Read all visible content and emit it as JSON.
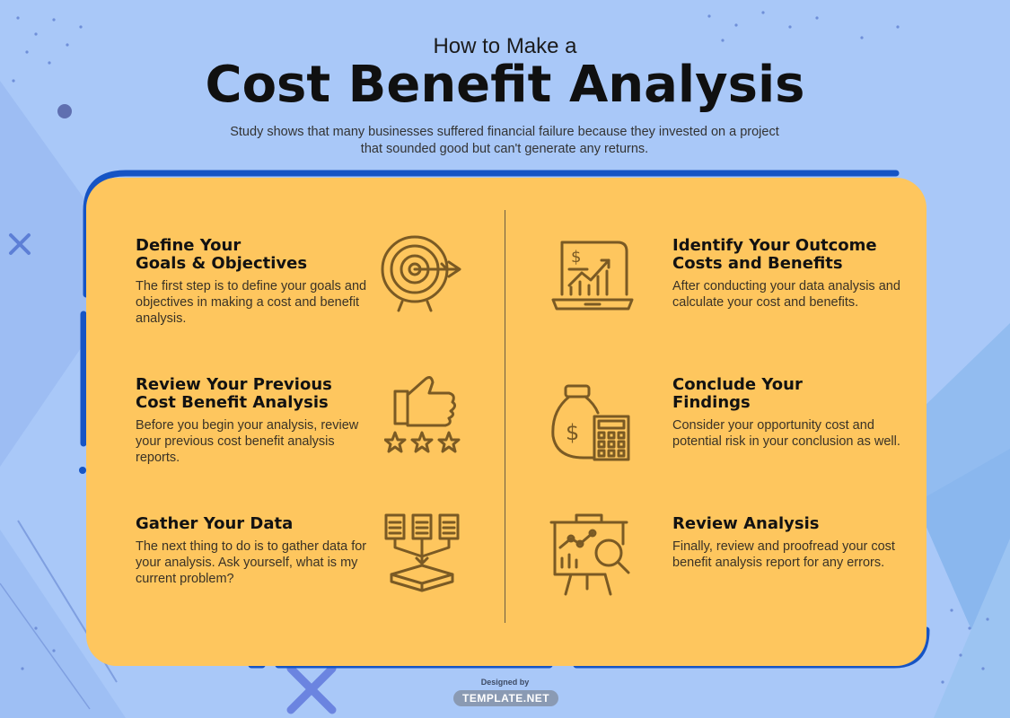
{
  "header": {
    "pre_title": "How to Make a",
    "title": "Cost Benefit Analysis",
    "subtitle": "Study shows that many businesses suffered financial failure because they invested on a project that sounded good but can't generate any returns."
  },
  "steps_left": [
    {
      "title_line1": "Define Your",
      "title_line2": "Goals & Objectives",
      "body": "The first step is to define your goals and objectives in making a cost and benefit analysis.",
      "icon": "target-icon"
    },
    {
      "title_line1": "Review Your Previous",
      "title_line2": "Cost Benefit Analysis",
      "body": "Before you begin your analysis, review your previous cost benefit analysis reports.",
      "icon": "thumbs-up-rating-icon"
    },
    {
      "title_line1": "Gather Your Data",
      "title_line2": "",
      "body": "The next thing to do is to gather data for your analysis. Ask yourself, what is my current problem?",
      "icon": "data-gathering-icon"
    }
  ],
  "steps_right": [
    {
      "title_line1": "Identify Your Outcome",
      "title_line2": "Costs and Benefits",
      "body": "After conducting your data analysis and calculate your cost and benefits.",
      "icon": "laptop-chart-icon"
    },
    {
      "title_line1": "Conclude Your",
      "title_line2": "Findings",
      "body": "Consider your opportunity cost and potential risk in your conclusion as well.",
      "icon": "money-bag-calculator-icon"
    },
    {
      "title_line1": "Review Analysis",
      "title_line2": "",
      "body": "Finally, review and proofread your cost benefit analysis report for any errors.",
      "icon": "presentation-magnifier-icon"
    }
  ],
  "credit": {
    "designed_by": "Designed by",
    "brand": "TEMPLATE.NET"
  },
  "colors": {
    "background": "#a9c8f8",
    "card": "#fec65e",
    "frame": "#1654c4",
    "icon": "#7a5a24"
  }
}
